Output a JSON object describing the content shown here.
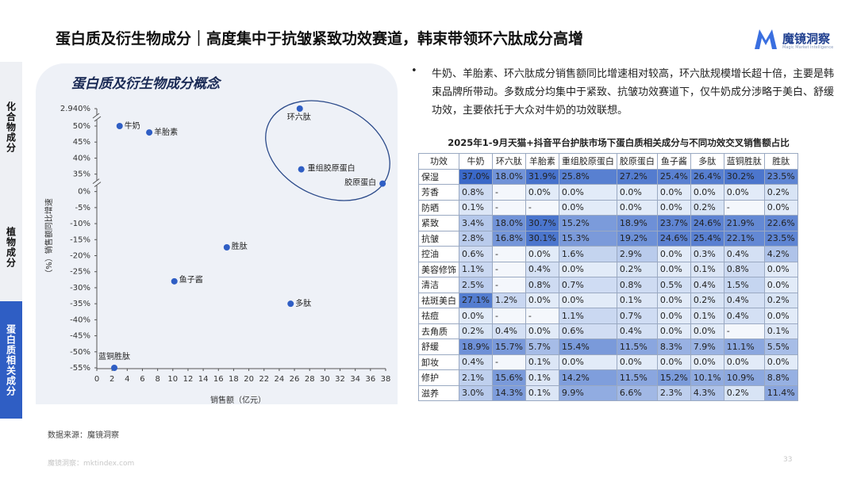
{
  "header": {
    "title": "蛋白质及衍生物成分｜高度集中于抗皱紧致功效赛道，韩束带领环六肽成分高增",
    "logo": "魔镜洞察",
    "logo_sub": "Magic Market Intelligence"
  },
  "sidebar": {
    "tabs": [
      "化合物成分",
      "植物成分",
      "蛋白质相关成分"
    ],
    "active": 2
  },
  "chart_data": {
    "type": "scatter",
    "title": "蛋白质及衍生物成分概念",
    "x_label": "销售额（亿元）",
    "y_label": "（%）销售额同比增速",
    "x": [
      3.0,
      6.9,
      26.7,
      26.9,
      37.6,
      17.1,
      10.2,
      25.5,
      2.3
    ],
    "values": [
      50,
      48,
      2940,
      36.5,
      16,
      -17.4,
      -28,
      -35,
      -55
    ],
    "labels": [
      "牛奶",
      "羊胎素",
      "环六肽",
      "重组胶原蛋白",
      "胶原蛋白",
      "胜肽",
      "鱼子酱",
      "多肽",
      "蓝铜胜肽"
    ],
    "color": "#2f5ec4",
    "xlim": [
      0,
      38
    ],
    "xticks": [
      0,
      2,
      4,
      6,
      8,
      10,
      12,
      14,
      16,
      18,
      20,
      22,
      24,
      26,
      28,
      30,
      32,
      34,
      36,
      38
    ],
    "ylim": [
      -55,
      2940
    ],
    "y_breaks": [
      [
        0,
        35
      ],
      [
        50,
        2940
      ]
    ],
    "yticks": [
      {
        "value": 2940,
        "label": "2.940%"
      },
      {
        "value": 50,
        "label": "50%"
      },
      {
        "value": 45,
        "label": "45%"
      },
      {
        "value": 40,
        "label": "40%"
      },
      {
        "value": 35,
        "label": "35%"
      },
      {
        "value": 0,
        "label": "0%"
      },
      {
        "value": -5,
        "label": "-5%"
      },
      {
        "value": -10,
        "label": "-10%"
      },
      {
        "value": -15,
        "label": "-15%"
      },
      {
        "value": -20,
        "label": "-20%"
      },
      {
        "value": -25,
        "label": "-25%"
      },
      {
        "value": -30,
        "label": "-30%"
      },
      {
        "value": -35,
        "label": "-35%"
      },
      {
        "value": -40,
        "label": "-40%"
      },
      {
        "value": -45,
        "label": "-45%"
      },
      {
        "value": -50,
        "label": "-50%"
      },
      {
        "value": -55,
        "label": "-55%"
      }
    ]
  },
  "bullet": "牛奶、羊胎素、环六肽成分销售额同比增速相对较高，环六肽规模增长超十倍，主要是韩束品牌所带动。多数成分均集中于紧致、抗皱功效赛道下，仅牛奶成分涉略于美白、舒缓功效，主要依托于大众对牛奶的功效联想。",
  "table": {
    "title": "2025年1-9月天猫+抖音平台护肤市场下蛋白质相关成分与不同功效交叉销售额占比",
    "header": [
      "功效",
      "牛奶",
      "环六肽",
      "羊胎素",
      "重组胶原蛋白",
      "胶原蛋白",
      "鱼子酱",
      "多肽",
      "蓝铜胜肽",
      "胜肽"
    ],
    "rows": [
      [
        "保湿",
        "37.0%",
        "18.0%",
        "31.9%",
        "25.8%",
        "27.2%",
        "25.4%",
        "26.4%",
        "30.2%",
        "23.5%"
      ],
      [
        "芳香",
        "0.8%",
        "-",
        "0.0%",
        "0.0%",
        "0.0%",
        "0.0%",
        "0.0%",
        "0.0%",
        "0.2%"
      ],
      [
        "防晒",
        "0.1%",
        "-",
        "-",
        "0.0%",
        "0.0%",
        "0.0%",
        "0.2%",
        "-",
        "0.0%"
      ],
      [
        "紧致",
        "3.4%",
        "18.0%",
        "30.7%",
        "15.2%",
        "18.9%",
        "23.7%",
        "24.6%",
        "21.9%",
        "22.6%"
      ],
      [
        "抗皱",
        "2.8%",
        "16.8%",
        "30.1%",
        "15.3%",
        "19.2%",
        "24.6%",
        "25.4%",
        "22.1%",
        "23.5%"
      ],
      [
        "控油",
        "0.6%",
        "-",
        "0.0%",
        "1.6%",
        "2.9%",
        "0.0%",
        "0.3%",
        "0.4%",
        "4.2%"
      ],
      [
        "美容修饰",
        "1.1%",
        "-",
        "0.4%",
        "0.0%",
        "0.2%",
        "0.0%",
        "0.1%",
        "0.8%",
        "0.0%"
      ],
      [
        "清洁",
        "2.5%",
        "-",
        "0.8%",
        "0.7%",
        "0.8%",
        "0.5%",
        "0.4%",
        "1.5%",
        "0.0%"
      ],
      [
        "祛斑美白",
        "27.1%",
        "1.2%",
        "0.0%",
        "0.0%",
        "0.1%",
        "0.0%",
        "0.2%",
        "0.4%",
        "0.2%"
      ],
      [
        "祛痘",
        "0.0%",
        "-",
        "-",
        "1.1%",
        "0.7%",
        "0.0%",
        "0.1%",
        "0.4%",
        "0.0%"
      ],
      [
        "去角质",
        "0.2%",
        "0.4%",
        "0.0%",
        "0.6%",
        "0.4%",
        "0.0%",
        "0.0%",
        "-",
        "0.1%"
      ],
      [
        "舒缓",
        "18.9%",
        "15.7%",
        "5.7%",
        "15.4%",
        "11.5%",
        "8.3%",
        "7.9%",
        "11.1%",
        "5.5%"
      ],
      [
        "卸妆",
        "0.4%",
        "-",
        "0.1%",
        "0.0%",
        "0.0%",
        "0.0%",
        "0.0%",
        "0.0%",
        "0.0%"
      ],
      [
        "修护",
        "2.1%",
        "15.6%",
        "0.1%",
        "14.2%",
        "11.5%",
        "15.2%",
        "10.1%",
        "10.9%",
        "8.8%"
      ],
      [
        "滋养",
        "3.0%",
        "14.3%",
        "0.1%",
        "9.9%",
        "6.6%",
        "2.3%",
        "4.3%",
        "0.2%",
        "11.4%"
      ]
    ]
  },
  "footer": {
    "source": "数据来源：魔镜洞察",
    "site": "魔镜洞察：mktindex.com",
    "page": "33"
  }
}
